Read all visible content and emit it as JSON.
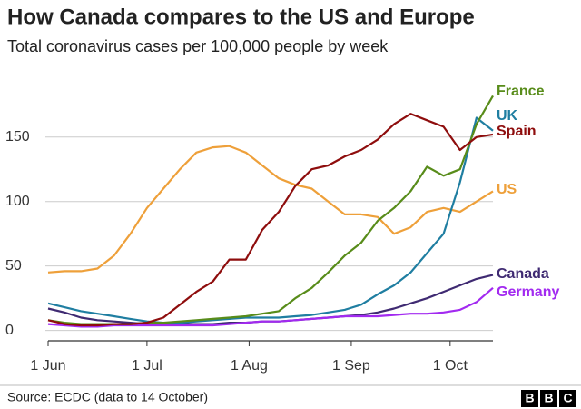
{
  "chart_data": {
    "type": "line",
    "title": "How Canada compares to the US and Europe",
    "subtitle": "Total coronavirus cases per 100,000 people by week",
    "source": "Source: ECDC (data to 14 October)",
    "branding": [
      "B",
      "B",
      "C"
    ],
    "x": [
      0,
      5,
      10,
      15,
      20,
      25,
      30,
      35,
      40,
      45,
      50,
      55,
      60,
      65,
      70,
      75,
      80,
      85,
      90,
      95,
      100,
      105,
      110,
      115,
      120,
      125,
      130,
      135
    ],
    "xlim": [
      0,
      135
    ],
    "xticks": [
      {
        "value": 0,
        "label": "1 Jun"
      },
      {
        "value": 30,
        "label": "1 Jul"
      },
      {
        "value": 61,
        "label": "1 Aug"
      },
      {
        "value": 92,
        "label": "1 Sep"
      },
      {
        "value": 122,
        "label": "1 Oct"
      }
    ],
    "ylim": [
      -8,
      190
    ],
    "yticks": [
      0,
      50,
      100,
      150
    ],
    "grid": true,
    "series": [
      {
        "name": "France",
        "color": "#588c1a",
        "values": [
          8,
          6,
          5,
          5,
          5,
          5,
          6,
          6,
          7,
          8,
          9,
          10,
          11,
          13,
          15,
          25,
          33,
          45,
          58,
          68,
          85,
          95,
          108,
          127,
          120,
          125,
          160,
          182
        ]
      },
      {
        "name": "UK",
        "color": "#1f7ea1",
        "values": [
          21,
          18,
          15,
          13,
          11,
          9,
          7,
          6,
          6,
          7,
          8,
          9,
          10,
          10,
          10,
          11,
          12,
          14,
          16,
          20,
          28,
          35,
          45,
          60,
          75,
          115,
          165,
          155
        ]
      },
      {
        "name": "Spain",
        "color": "#8e0d0d",
        "values": [
          8,
          5,
          4,
          4,
          5,
          5,
          6,
          10,
          20,
          30,
          38,
          55,
          55,
          78,
          92,
          112,
          125,
          128,
          135,
          140,
          148,
          160,
          168,
          163,
          158,
          140,
          150,
          152
        ]
      },
      {
        "name": "US",
        "color": "#eea03a",
        "values": [
          45,
          46,
          46,
          48,
          58,
          75,
          95,
          110,
          125,
          138,
          142,
          143,
          138,
          128,
          118,
          113,
          110,
          100,
          90,
          90,
          88,
          75,
          80,
          92,
          95,
          92,
          100,
          108
        ]
      },
      {
        "name": "Canada",
        "color": "#3f2a72",
        "values": [
          17,
          14,
          10,
          8,
          7,
          6,
          5,
          5,
          5,
          5,
          5,
          6,
          6,
          7,
          7,
          8,
          9,
          10,
          11,
          12,
          14,
          17,
          21,
          25,
          30,
          35,
          40,
          43
        ]
      },
      {
        "name": "Germany",
        "color": "#a22af0",
        "values": [
          5,
          4,
          3,
          3,
          4,
          4,
          4,
          4,
          4,
          4,
          4,
          5,
          6,
          7,
          7,
          8,
          9,
          10,
          11,
          11,
          11,
          12,
          13,
          13,
          14,
          16,
          22,
          33
        ]
      }
    ]
  }
}
